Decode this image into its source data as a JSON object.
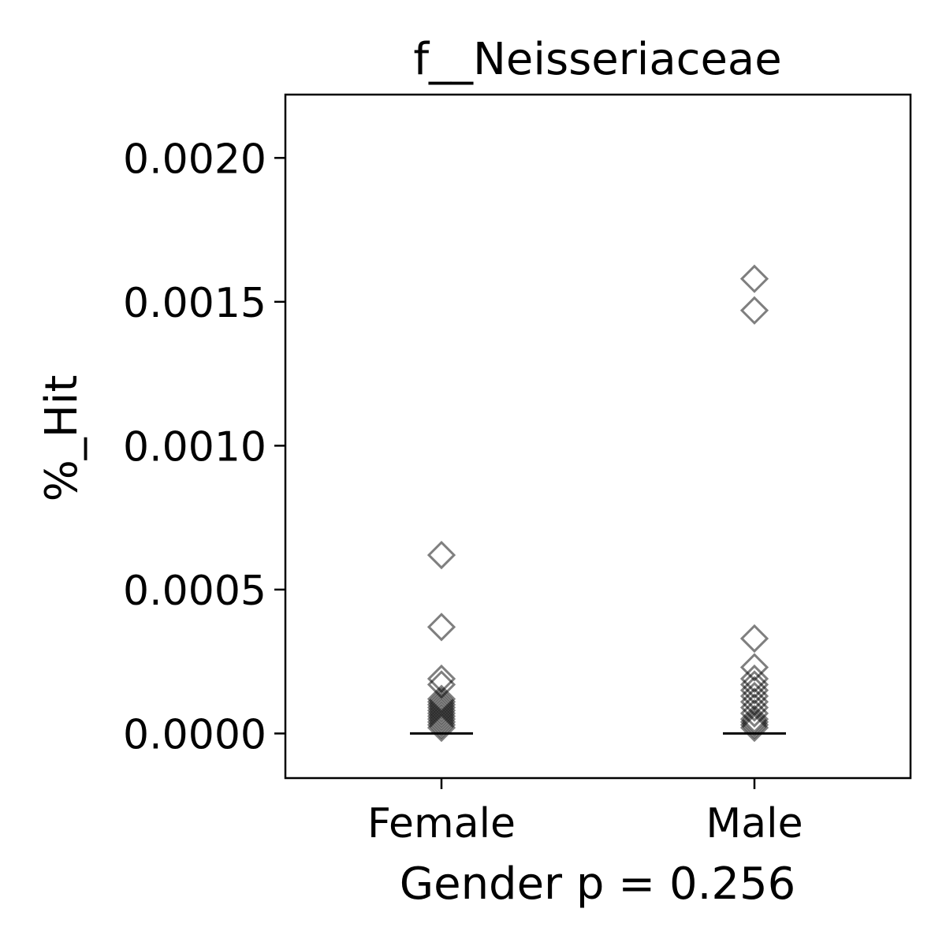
{
  "chart_data": {
    "type": "scatter",
    "title": "f__Neisseriaceae",
    "xlabel": "Gender p = 0.256",
    "ylabel": "%_Hit",
    "categories": [
      "Female",
      "Male"
    ],
    "ylim": [
      -0.000155,
      0.00222
    ],
    "yticks": [
      0.0,
      0.0005,
      0.001,
      0.0015,
      0.002
    ],
    "ytick_labels": [
      "0.0000",
      "0.0005",
      "0.0010",
      "0.0015",
      "0.0020"
    ],
    "grid": false,
    "marker": "diamond-open",
    "marker_color": "#000000",
    "marker_opacity": 0.5,
    "median_color": "#000000",
    "series": [
      {
        "category": "Female",
        "values": [
          0.00062,
          0.00037,
          0.00019,
          0.00017,
          0.00012,
          0.00011,
          0.0001,
          9e-05,
          8e-05,
          7e-05,
          6e-05,
          5e-05,
          4e-05,
          3e-05,
          2e-05
        ],
        "median": 0.0
      },
      {
        "category": "Male",
        "values": [
          0.00158,
          0.00147,
          0.00033,
          0.00023,
          0.00019,
          0.00017,
          0.00015,
          0.00013,
          0.00011,
          9e-05,
          7e-05,
          5e-05,
          4e-05,
          3e-05,
          2e-05
        ],
        "median": 0.0
      }
    ]
  }
}
